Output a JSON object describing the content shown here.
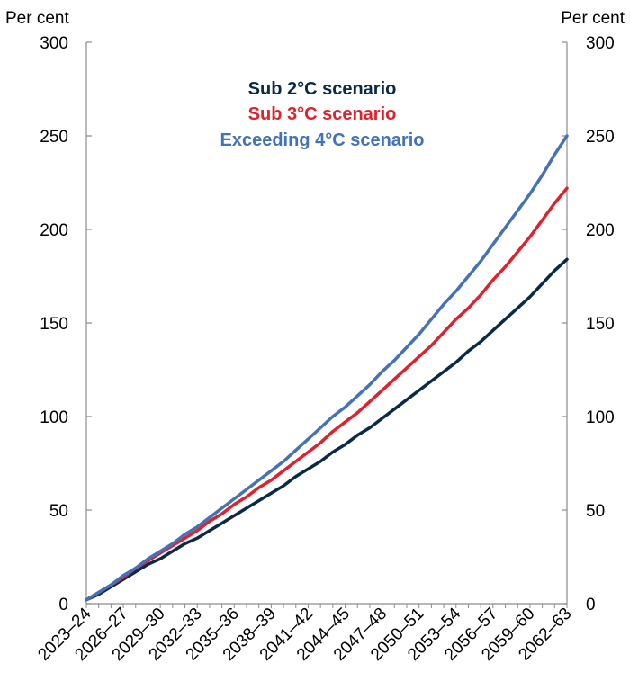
{
  "chart_data": {
    "type": "line",
    "title": "",
    "xlabel": "",
    "ylabel": "",
    "y_unit_left": "Per cent",
    "y_unit_right": "Per cent",
    "ylim": [
      0,
      300
    ],
    "yticks": [
      0,
      50,
      100,
      150,
      200,
      250,
      300
    ],
    "x_tick_labels": [
      "2023–24",
      "2026–27",
      "2029–30",
      "2032–33",
      "2035–36",
      "2038–39",
      "2041–42",
      "2044–45",
      "2047–48",
      "2050–51",
      "2053–54",
      "2056–57",
      "2059–60",
      "2062–63"
    ],
    "x_categories": [
      "2023–24",
      "2024–25",
      "2025–26",
      "2026–27",
      "2027–28",
      "2028–29",
      "2029–30",
      "2030–31",
      "2031–32",
      "2032–33",
      "2033–34",
      "2034–35",
      "2035–36",
      "2036–37",
      "2037–38",
      "2038–39",
      "2039–40",
      "2040–41",
      "2041–42",
      "2042–43",
      "2043–44",
      "2044–45",
      "2045–46",
      "2046–47",
      "2047–48",
      "2048–49",
      "2049–50",
      "2050–51",
      "2051–52",
      "2052–53",
      "2053–54",
      "2054–55",
      "2055–56",
      "2056–57",
      "2057–58",
      "2058–59",
      "2059–60",
      "2060–61",
      "2061–62",
      "2062–63"
    ],
    "grid": false,
    "legend_position": "top-center",
    "series": [
      {
        "name": "Sub 2°C scenario",
        "color": "#0b2a45",
        "values": [
          2,
          5,
          9,
          13,
          17,
          21,
          24,
          28,
          32,
          35,
          39,
          43,
          47,
          51,
          55,
          59,
          63,
          68,
          72,
          76,
          81,
          85,
          90,
          94,
          99,
          104,
          109,
          114,
          119,
          124,
          129,
          135,
          140,
          146,
          152,
          158,
          164,
          171,
          178,
          184
        ]
      },
      {
        "name": "Sub 3°C scenario",
        "color": "#e2202c",
        "values": [
          2,
          6,
          10,
          14,
          19,
          23,
          27,
          31,
          35,
          39,
          44,
          48,
          53,
          57,
          62,
          66,
          71,
          76,
          81,
          86,
          92,
          97,
          102,
          108,
          114,
          120,
          126,
          132,
          138,
          145,
          152,
          158,
          165,
          173,
          180,
          188,
          196,
          205,
          214,
          222
        ]
      },
      {
        "name": "Exceeding 4°C scenario",
        "color": "#4472b8",
        "values": [
          2,
          6,
          10,
          15,
          19,
          24,
          28,
          32,
          37,
          41,
          46,
          51,
          56,
          61,
          66,
          71,
          76,
          82,
          88,
          94,
          100,
          105,
          111,
          117,
          124,
          130,
          137,
          144,
          152,
          160,
          167,
          175,
          183,
          192,
          201,
          210,
          219,
          229,
          240,
          250
        ]
      }
    ]
  }
}
